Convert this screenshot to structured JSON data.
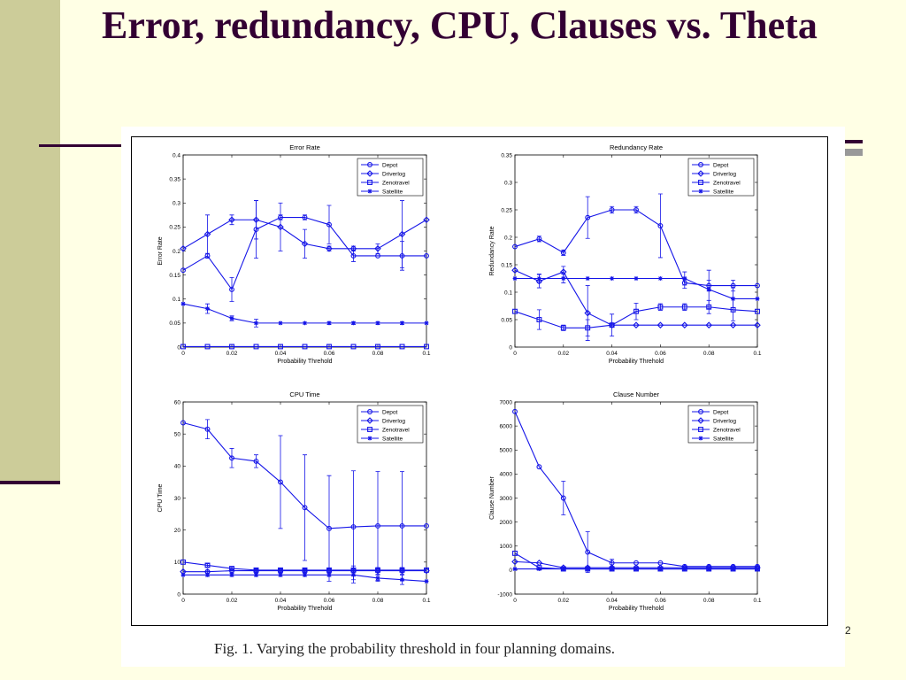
{
  "slide": {
    "title": "Error, redundancy, CPU, Clauses vs. Theta",
    "caption": "Fig. 1. Varying the probability threshold in four planning domains.",
    "slide_number": "2"
  },
  "colors": {
    "series": "#1515E8",
    "title": "#330033",
    "sidebar": "#CCCC99",
    "background": "#FFFFE5"
  },
  "chart_data": [
    {
      "type": "line",
      "title": "Error Rate",
      "xlabel": "Probability Threhold",
      "ylabel": "Error Rate",
      "xlim": [
        0,
        0.1
      ],
      "ylim": [
        0,
        0.4
      ],
      "xticks": [
        0,
        0.02,
        0.04,
        0.06,
        0.08,
        0.1
      ],
      "yticks": [
        0,
        0.05,
        0.1,
        0.15,
        0.2,
        0.25,
        0.3,
        0.35,
        0.4
      ],
      "xtick_labels": [
        "0",
        "0.02",
        "0.04",
        "0.06",
        "0.08",
        "0.1"
      ],
      "ytick_labels": [
        "0",
        "0.05",
        "0.1",
        "0.15",
        "0.2",
        "0.25",
        "0.3",
        "0.35",
        "0.4"
      ],
      "legend": "top-right",
      "x": [
        0,
        0.01,
        0.02,
        0.03,
        0.04,
        0.05,
        0.06,
        0.07,
        0.08,
        0.09,
        0.1
      ],
      "series": [
        {
          "name": "Depot",
          "marker": "circle",
          "values": [
            0.16,
            0.19,
            0.12,
            0.245,
            0.27,
            0.27,
            0.255,
            0.19,
            0.19,
            0.19,
            0.19
          ],
          "errors": [
            0,
            0.005,
            0.025,
            0.06,
            0.005,
            0.005,
            0.04,
            0.012,
            0,
            0.03,
            0
          ]
        },
        {
          "name": "Driverlog",
          "marker": "diamond",
          "values": [
            0.205,
            0.235,
            0.265,
            0.265,
            0.25,
            0.215,
            0.205,
            0.205,
            0.205,
            0.235,
            0.265
          ],
          "errors": [
            0,
            0.04,
            0.01,
            0.04,
            0.05,
            0.03,
            0.005,
            0.005,
            0.01,
            0.07,
            0
          ]
        },
        {
          "name": "Zenotravel",
          "marker": "square",
          "values": [
            0.001,
            0.001,
            0.001,
            0.001,
            0.001,
            0.001,
            0.001,
            0.001,
            0.001,
            0.001,
            0.001
          ],
          "errors": [
            0,
            0,
            0,
            0,
            0,
            0,
            0,
            0,
            0,
            0,
            0
          ]
        },
        {
          "name": "Satellite",
          "marker": "star",
          "values": [
            0.09,
            0.08,
            0.06,
            0.05,
            0.05,
            0.05,
            0.05,
            0.05,
            0.05,
            0.05,
            0.05
          ],
          "errors": [
            0,
            0.01,
            0.005,
            0.008,
            0,
            0,
            0.003,
            0.003,
            0.003,
            0.003,
            0
          ]
        }
      ]
    },
    {
      "type": "line",
      "title": "Redundancy Rate",
      "xlabel": "Probability Threhold",
      "ylabel": "Redundancy Rate",
      "xlim": [
        0,
        0.1
      ],
      "ylim": [
        0,
        0.35
      ],
      "xticks": [
        0,
        0.02,
        0.04,
        0.06,
        0.08,
        0.1
      ],
      "yticks": [
        0,
        0.05,
        0.1,
        0.15,
        0.2,
        0.25,
        0.3,
        0.35
      ],
      "xtick_labels": [
        "0",
        "0.02",
        "0.04",
        "0.06",
        "0.08",
        "0.1"
      ],
      "ytick_labels": [
        "0",
        "0.05",
        "0.1",
        "0.15",
        "0.2",
        "0.25",
        "0.3",
        "0.35"
      ],
      "legend": "top-right",
      "x": [
        0,
        0.01,
        0.02,
        0.03,
        0.04,
        0.05,
        0.06,
        0.07,
        0.08,
        0.09,
        0.1
      ],
      "series": [
        {
          "name": "Depot",
          "marker": "circle",
          "values": [
            0.183,
            0.197,
            0.172,
            0.236,
            0.25,
            0.25,
            0.221,
            0.117,
            0.112,
            0.112,
            0.112
          ],
          "errors": [
            0,
            0.005,
            0.005,
            0.038,
            0.006,
            0.006,
            0.058,
            0.01,
            0.01,
            0.01,
            0
          ]
        },
        {
          "name": "Driverlog",
          "marker": "diamond",
          "values": [
            0.14,
            0.12,
            0.137,
            0.062,
            0.04,
            0.04,
            0.04,
            0.04,
            0.04,
            0.04,
            0.04
          ],
          "errors": [
            0,
            0.012,
            0.01,
            0.05,
            0.003,
            0,
            0,
            0,
            0,
            0,
            0
          ]
        },
        {
          "name": "Zenotravel",
          "marker": "square",
          "values": [
            0.065,
            0.05,
            0.035,
            0.035,
            0.04,
            0.065,
            0.073,
            0.073,
            0.073,
            0.068,
            0.065
          ],
          "errors": [
            0,
            0.018,
            0.005,
            0.015,
            0.02,
            0.015,
            0.006,
            0.006,
            0.012,
            0.02,
            0
          ]
        },
        {
          "name": "Satellite",
          "marker": "star",
          "values": [
            0.125,
            0.125,
            0.125,
            0.125,
            0.125,
            0.125,
            0.125,
            0.125,
            0.105,
            0.088,
            0.088
          ],
          "errors": [
            0,
            0.008,
            0.008,
            0,
            0,
            0,
            0,
            0.012,
            0.035,
            0.02,
            0
          ]
        }
      ]
    },
    {
      "type": "line",
      "title": "CPU Time",
      "xlabel": "Probability Threhold",
      "ylabel": "CPU Time",
      "xlim": [
        0,
        0.1
      ],
      "ylim": [
        0,
        60
      ],
      "xticks": [
        0,
        0.02,
        0.04,
        0.06,
        0.08,
        0.1
      ],
      "yticks": [
        0,
        10,
        20,
        30,
        40,
        50,
        60
      ],
      "xtick_labels": [
        "0",
        "0.02",
        "0.04",
        "0.06",
        "0.08",
        "0.1"
      ],
      "ytick_labels": [
        "0",
        "10",
        "20",
        "30",
        "40",
        "50",
        "60"
      ],
      "legend": "top-right",
      "x": [
        0,
        0.01,
        0.02,
        0.03,
        0.04,
        0.05,
        0.06,
        0.07,
        0.08,
        0.09,
        0.1
      ],
      "series": [
        {
          "name": "Depot",
          "marker": "circle",
          "values": [
            53.5,
            51.5,
            42.5,
            41.5,
            35,
            27,
            20.5,
            21,
            21.3,
            21.3,
            21.3
          ],
          "errors": [
            0,
            3,
            3,
            2,
            14.5,
            16.5,
            16.5,
            17.5,
            17,
            17,
            0
          ]
        },
        {
          "name": "Driverlog",
          "marker": "diamond",
          "values": [
            7,
            7,
            7.3,
            7.3,
            7.3,
            7.3,
            7.3,
            7.3,
            7.3,
            7.3,
            7.3
          ],
          "errors": [
            0,
            0.5,
            0.5,
            0.5,
            0.5,
            0.5,
            0.5,
            1.5,
            1,
            1,
            0
          ]
        },
        {
          "name": "Zenotravel",
          "marker": "square",
          "values": [
            10,
            9,
            8,
            7.5,
            7.5,
            7.5,
            7.5,
            7.5,
            7.5,
            7.5,
            7.5
          ],
          "errors": [
            0,
            0.5,
            0.5,
            0.5,
            0.5,
            0.5,
            0.5,
            0.5,
            0.5,
            0.5,
            0
          ]
        },
        {
          "name": "Satellite",
          "marker": "star",
          "values": [
            6,
            6,
            6,
            6,
            6,
            6,
            6,
            6,
            5,
            4.5,
            4
          ],
          "errors": [
            0,
            0.5,
            0.5,
            0.5,
            0.5,
            0.5,
            0.5,
            1.5,
            1,
            1.5,
            0
          ]
        }
      ]
    },
    {
      "type": "line",
      "title": "Clause Number",
      "xlabel": "Probability Threhold",
      "ylabel": "Clause Number",
      "xlim": [
        0,
        0.1
      ],
      "ylim": [
        -1000,
        7000
      ],
      "xticks": [
        0,
        0.02,
        0.04,
        0.06,
        0.08,
        0.1
      ],
      "yticks": [
        -1000,
        0,
        1000,
        2000,
        3000,
        4000,
        5000,
        6000,
        7000
      ],
      "xtick_labels": [
        "0",
        "0.02",
        "0.04",
        "0.06",
        "0.08",
        "0.1"
      ],
      "ytick_labels": [
        "-1000",
        "0",
        "1000",
        "2000",
        "3000",
        "4000",
        "5000",
        "6000",
        "7000"
      ],
      "legend": "top-right",
      "x": [
        0,
        0.01,
        0.02,
        0.03,
        0.04,
        0.05,
        0.06,
        0.07,
        0.08,
        0.09,
        0.1
      ],
      "series": [
        {
          "name": "Depot",
          "marker": "circle",
          "values": [
            6600,
            4300,
            3000,
            750,
            300,
            300,
            300,
            150,
            150,
            150,
            150
          ],
          "errors": [
            0,
            0,
            700,
            850,
            150,
            0,
            0,
            0,
            0,
            0,
            0
          ]
        },
        {
          "name": "Driverlog",
          "marker": "diamond",
          "values": [
            350,
            300,
            100,
            100,
            100,
            100,
            100,
            100,
            100,
            100,
            100
          ],
          "errors": [
            0,
            0,
            0,
            0,
            0,
            0,
            0,
            0,
            0,
            0,
            0
          ]
        },
        {
          "name": "Zenotravel",
          "marker": "square",
          "values": [
            700,
            100,
            50,
            50,
            50,
            50,
            50,
            50,
            50,
            50,
            50
          ],
          "errors": [
            0,
            0,
            0,
            0,
            0,
            0,
            0,
            0,
            0,
            0,
            0
          ]
        },
        {
          "name": "Satellite",
          "marker": "star",
          "values": [
            50,
            50,
            50,
            50,
            50,
            50,
            50,
            50,
            50,
            50,
            50
          ],
          "errors": [
            0,
            0,
            0,
            0,
            0,
            0,
            0,
            0,
            0,
            0,
            0
          ]
        }
      ]
    }
  ]
}
